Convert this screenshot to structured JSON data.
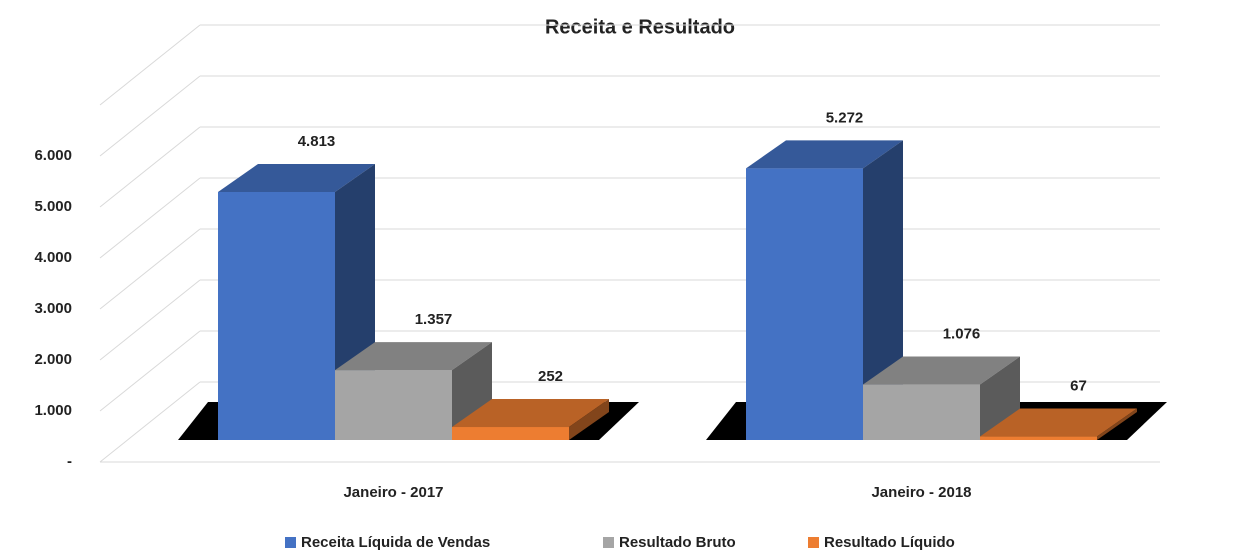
{
  "chart_data": {
    "type": "bar3d",
    "title": "Receita e Resultado",
    "categories": [
      "Janeiro - 2017",
      "Janeiro - 2018"
    ],
    "series": [
      {
        "name": "Receita Líquida de Vendas",
        "color": "#4472c4",
        "values": [
          4813,
          5272
        ],
        "value_labels": [
          "4.813",
          "5.272"
        ]
      },
      {
        "name": "Resultado Bruto",
        "color": "#a5a5a5",
        "values": [
          1357,
          1076
        ],
        "value_labels": [
          "1.357",
          "1.076"
        ]
      },
      {
        "name": "Resultado Líquido",
        "color": "#ed7d31",
        "values": [
          252,
          67
        ],
        "value_labels": [
          "252",
          "67"
        ]
      }
    ],
    "ylim": [
      0,
      7000
    ],
    "yticks": [
      {
        "value": 0,
        "label": "-"
      },
      {
        "value": 1000,
        "label": "1.000"
      },
      {
        "value": 2000,
        "label": "2.000"
      },
      {
        "value": 3000,
        "label": "3.000"
      },
      {
        "value": 4000,
        "label": "4.000"
      },
      {
        "value": 5000,
        "label": "5.000"
      },
      {
        "value": 6000,
        "label": "6.000"
      }
    ],
    "grid": true,
    "legend": "bottom"
  }
}
